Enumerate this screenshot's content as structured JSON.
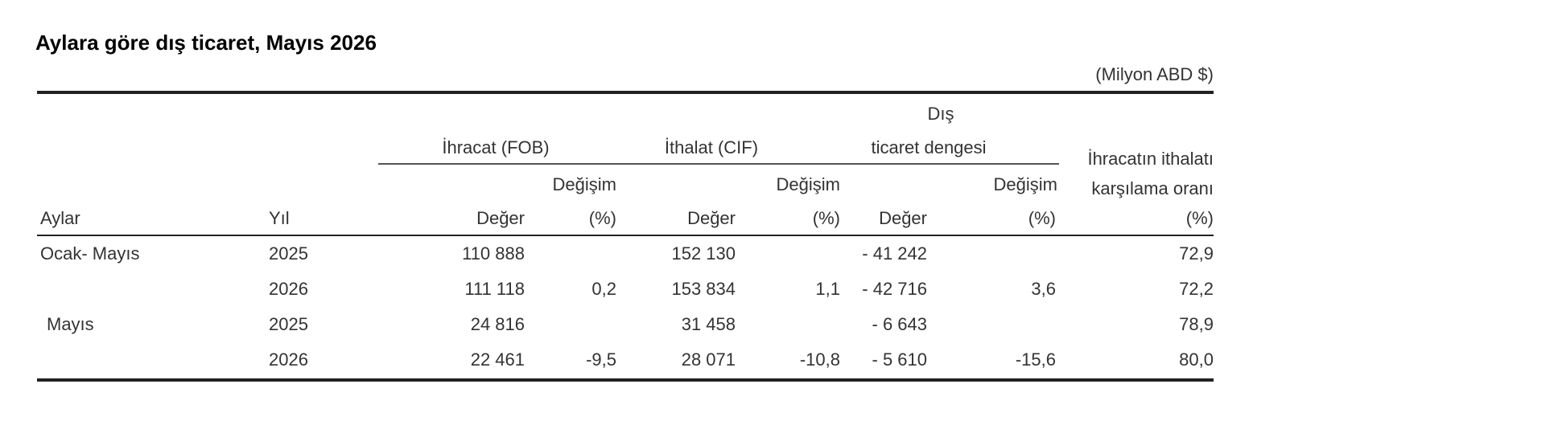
{
  "title": "Aylara göre dış ticaret, Mayıs 2026",
  "unit": "(Milyon ABD $)",
  "headers": {
    "month": "Aylar",
    "year": "Yıl",
    "export_group": "İhracat (FOB)",
    "import_group": "İthalat (CIF)",
    "balance_group_line1": "Dış",
    "balance_group_line2": "ticaret dengesi",
    "ratio_line1": "İhracatın ithalatı",
    "ratio_line2": "karşılama oranı",
    "ratio_line3": "(%)",
    "change": "Değişim",
    "value": "Değer",
    "pct": "(%)"
  },
  "rows": [
    {
      "month": "Ocak- Mayıs",
      "year": "2025",
      "exp_value": "110 888",
      "exp_change": "",
      "imp_value": "152 130",
      "imp_change": "",
      "bal_value": "- 41 242",
      "bal_change": "",
      "ratio": "72,9"
    },
    {
      "month": "",
      "year": "2026",
      "exp_value": "111 118",
      "exp_change": "0,2",
      "imp_value": "153 834",
      "imp_change": "1,1",
      "bal_value": "- 42 716",
      "bal_change": "3,6",
      "ratio": "72,2"
    },
    {
      "month": "Mayıs",
      "year": "2025",
      "exp_value": "24 816",
      "exp_change": "",
      "imp_value": "31 458",
      "imp_change": "",
      "bal_value": "- 6 643",
      "bal_change": "",
      "ratio": "78,9"
    },
    {
      "month": "",
      "year": "2026",
      "exp_value": "22 461",
      "exp_change": "-9,5",
      "imp_value": "28 071",
      "imp_change": "-10,8",
      "bal_value": "- 5 610",
      "bal_change": "-15,6",
      "ratio": "80,0"
    }
  ]
}
